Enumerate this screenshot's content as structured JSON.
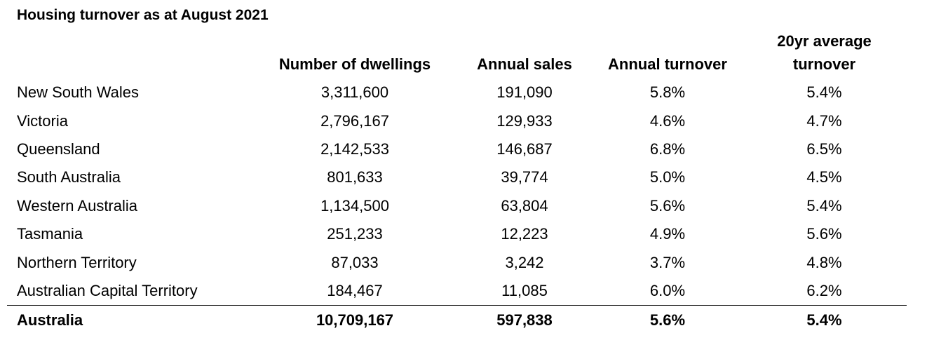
{
  "title": "Housing turnover as at August 2021",
  "columns": [
    "",
    "Number of dwellings",
    "Annual sales",
    "Annual turnover",
    "20yr average turnover"
  ],
  "rows": [
    {
      "name": "New South Wales",
      "dwellings": "3,311,600",
      "sales": "191,090",
      "turnover": "5.8%",
      "avg": "5.4%"
    },
    {
      "name": "Victoria",
      "dwellings": "2,796,167",
      "sales": "129,933",
      "turnover": "4.6%",
      "avg": "4.7%"
    },
    {
      "name": "Queensland",
      "dwellings": "2,142,533",
      "sales": "146,687",
      "turnover": "6.8%",
      "avg": "6.5%"
    },
    {
      "name": "South Australia",
      "dwellings": "801,633",
      "sales": "39,774",
      "turnover": "5.0%",
      "avg": "4.5%"
    },
    {
      "name": "Western Australia",
      "dwellings": "1,134,500",
      "sales": "63,804",
      "turnover": "5.6%",
      "avg": "5.4%"
    },
    {
      "name": "Tasmania",
      "dwellings": "251,233",
      "sales": "12,223",
      "turnover": "4.9%",
      "avg": "5.6%"
    },
    {
      "name": "Northern Territory",
      "dwellings": "87,033",
      "sales": "3,242",
      "turnover": "3.7%",
      "avg": "4.8%"
    },
    {
      "name": "Australian Capital Territory",
      "dwellings": "184,467",
      "sales": "11,085",
      "turnover": "6.0%",
      "avg": "6.2%"
    }
  ],
  "total": {
    "name": "Australia",
    "dwellings": "10,709,167",
    "sales": "597,838",
    "turnover": "5.6%",
    "avg": "5.4%"
  }
}
